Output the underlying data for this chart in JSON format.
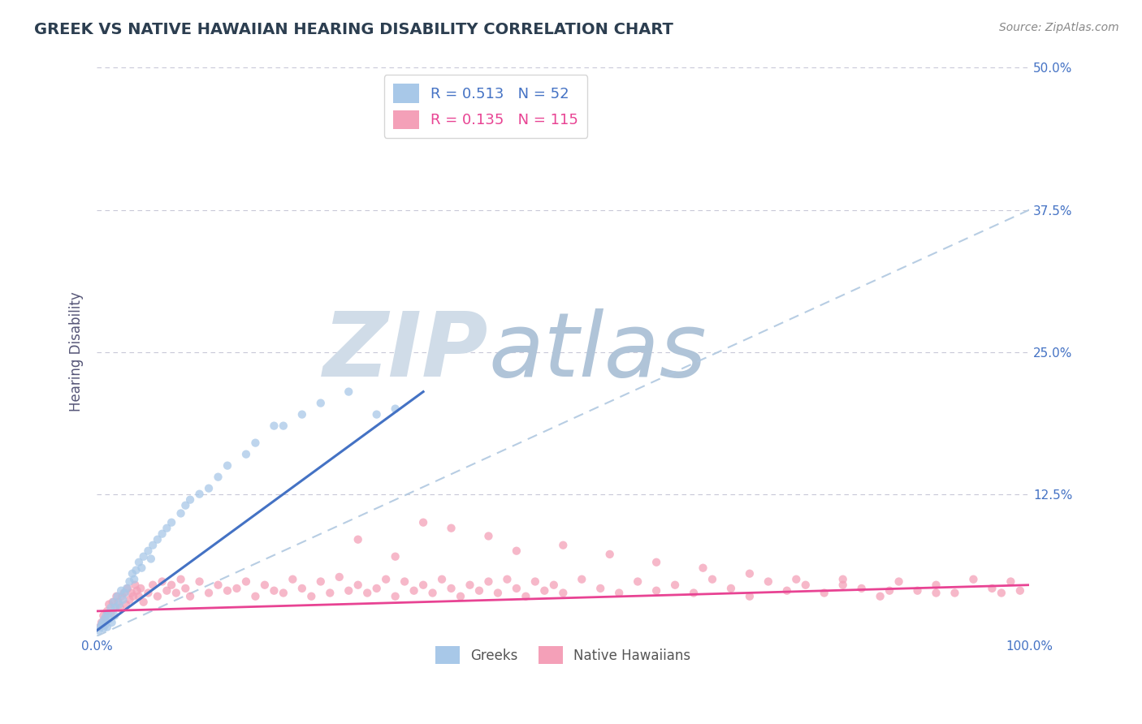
{
  "title": "GREEK VS NATIVE HAWAIIAN HEARING DISABILITY CORRELATION CHART",
  "source": "Source: ZipAtlas.com",
  "ylabel": "Hearing Disability",
  "xlim": [
    0,
    1.0
  ],
  "ylim": [
    0,
    0.5
  ],
  "xticks": [
    0.0,
    1.0
  ],
  "yticks": [
    0.0,
    0.125,
    0.25,
    0.375,
    0.5
  ],
  "xtick_labels": [
    "0.0%",
    "100.0%"
  ],
  "ytick_labels": [
    "",
    "12.5%",
    "25.0%",
    "37.5%",
    "50.0%"
  ],
  "greek_R": 0.513,
  "greek_N": 52,
  "hawaiian_R": 0.135,
  "hawaiian_N": 115,
  "greek_color": "#a8c8e8",
  "hawaiian_color": "#f4a0b8",
  "greek_trend_color": "#4472c4",
  "hawaiian_trend_color": "#e84393",
  "reference_line_color": "#b0c8e0",
  "background_color": "#ffffff",
  "grid_color": "#c8c8d8",
  "title_color": "#2c3e50",
  "axis_label_color": "#555577",
  "tick_color": "#4472c4",
  "source_color": "#888888",
  "watermark_zip_color": "#d0dce8",
  "watermark_atlas_color": "#b0c4d8",
  "legend_text_color_greek": "#4472c4",
  "legend_text_color_hawaiian": "#e84393",
  "bottom_legend_color": "#555555",
  "greek_trend_x0": 0.0,
  "greek_trend_y0": 0.005,
  "greek_trend_x1": 0.35,
  "greek_trend_y1": 0.215,
  "hawaiian_trend_x0": 0.0,
  "hawaiian_trend_y0": 0.022,
  "hawaiian_trend_x1": 1.0,
  "hawaiian_trend_y1": 0.045,
  "ref_line_x0": 0.0,
  "ref_line_y0": 0.0,
  "ref_line_x1": 1.0,
  "ref_line_y1": 0.375,
  "greek_points_x": [
    0.002,
    0.004,
    0.005,
    0.006,
    0.007,
    0.008,
    0.009,
    0.01,
    0.011,
    0.012,
    0.013,
    0.015,
    0.016,
    0.018,
    0.019,
    0.02,
    0.022,
    0.024,
    0.026,
    0.028,
    0.03,
    0.032,
    0.035,
    0.038,
    0.04,
    0.042,
    0.045,
    0.048,
    0.05,
    0.055,
    0.058,
    0.06,
    0.065,
    0.07,
    0.075,
    0.08,
    0.09,
    0.095,
    0.1,
    0.11,
    0.12,
    0.13,
    0.14,
    0.16,
    0.17,
    0.19,
    0.2,
    0.22,
    0.24,
    0.27,
    0.3,
    0.32
  ],
  "greek_points_y": [
    0.005,
    0.008,
    0.01,
    0.012,
    0.007,
    0.015,
    0.01,
    0.018,
    0.008,
    0.02,
    0.015,
    0.025,
    0.012,
    0.03,
    0.018,
    0.025,
    0.035,
    0.028,
    0.04,
    0.032,
    0.038,
    0.042,
    0.048,
    0.055,
    0.05,
    0.058,
    0.065,
    0.06,
    0.07,
    0.075,
    0.068,
    0.08,
    0.085,
    0.09,
    0.095,
    0.1,
    0.108,
    0.115,
    0.12,
    0.125,
    0.13,
    0.14,
    0.15,
    0.16,
    0.17,
    0.185,
    0.185,
    0.195,
    0.205,
    0.215,
    0.195,
    0.2
  ],
  "hawaiian_points_x": [
    0.003,
    0.005,
    0.007,
    0.009,
    0.011,
    0.013,
    0.015,
    0.017,
    0.019,
    0.021,
    0.023,
    0.025,
    0.027,
    0.029,
    0.031,
    0.033,
    0.035,
    0.037,
    0.039,
    0.041,
    0.043,
    0.045,
    0.047,
    0.05,
    0.055,
    0.06,
    0.065,
    0.07,
    0.075,
    0.08,
    0.085,
    0.09,
    0.095,
    0.1,
    0.11,
    0.12,
    0.13,
    0.14,
    0.15,
    0.16,
    0.17,
    0.18,
    0.19,
    0.2,
    0.21,
    0.22,
    0.23,
    0.24,
    0.25,
    0.26,
    0.27,
    0.28,
    0.29,
    0.3,
    0.31,
    0.32,
    0.33,
    0.34,
    0.35,
    0.36,
    0.37,
    0.38,
    0.39,
    0.4,
    0.41,
    0.42,
    0.43,
    0.44,
    0.45,
    0.46,
    0.47,
    0.48,
    0.49,
    0.5,
    0.52,
    0.54,
    0.56,
    0.58,
    0.6,
    0.62,
    0.64,
    0.66,
    0.68,
    0.7,
    0.72,
    0.74,
    0.76,
    0.78,
    0.8,
    0.82,
    0.84,
    0.86,
    0.88,
    0.9,
    0.92,
    0.94,
    0.96,
    0.97,
    0.98,
    0.99,
    0.38,
    0.42,
    0.5,
    0.55,
    0.6,
    0.65,
    0.7,
    0.75,
    0.8,
    0.85,
    0.9,
    0.35,
    0.28,
    0.45,
    0.32
  ],
  "hawaiian_points_y": [
    0.008,
    0.012,
    0.018,
    0.015,
    0.022,
    0.028,
    0.02,
    0.03,
    0.025,
    0.035,
    0.03,
    0.025,
    0.035,
    0.038,
    0.028,
    0.042,
    0.032,
    0.038,
    0.035,
    0.045,
    0.04,
    0.035,
    0.042,
    0.03,
    0.038,
    0.045,
    0.035,
    0.048,
    0.04,
    0.045,
    0.038,
    0.05,
    0.042,
    0.035,
    0.048,
    0.038,
    0.045,
    0.04,
    0.042,
    0.048,
    0.035,
    0.045,
    0.04,
    0.038,
    0.05,
    0.042,
    0.035,
    0.048,
    0.038,
    0.052,
    0.04,
    0.045,
    0.038,
    0.042,
    0.05,
    0.035,
    0.048,
    0.04,
    0.045,
    0.038,
    0.05,
    0.042,
    0.035,
    0.045,
    0.04,
    0.048,
    0.038,
    0.05,
    0.042,
    0.035,
    0.048,
    0.04,
    0.045,
    0.038,
    0.05,
    0.042,
    0.038,
    0.048,
    0.04,
    0.045,
    0.038,
    0.05,
    0.042,
    0.035,
    0.048,
    0.04,
    0.045,
    0.038,
    0.05,
    0.042,
    0.035,
    0.048,
    0.04,
    0.045,
    0.038,
    0.05,
    0.042,
    0.038,
    0.048,
    0.04,
    0.095,
    0.088,
    0.08,
    0.072,
    0.065,
    0.06,
    0.055,
    0.05,
    0.045,
    0.04,
    0.038,
    0.1,
    0.085,
    0.075,
    0.07
  ]
}
